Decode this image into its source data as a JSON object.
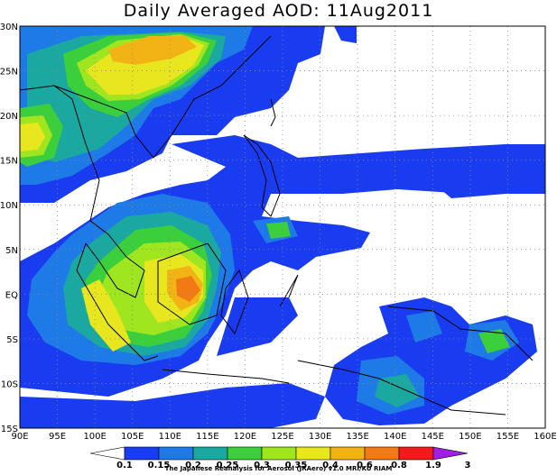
{
  "title": "Daily Averaged AOD: 11Aug2011",
  "map": {
    "lat_labels": [
      "30N",
      "25N",
      "20N",
      "15N",
      "10N",
      "5N",
      "EQ",
      "5S",
      "10S",
      "15S"
    ],
    "lon_labels": [
      "90E",
      "95E",
      "100E",
      "105E",
      "110E",
      "115E",
      "120E",
      "125E",
      "130E",
      "135E",
      "140E",
      "145E",
      "150E",
      "155E",
      "160E"
    ],
    "lon_range": [
      90,
      160
    ],
    "lat_range": [
      -15,
      30
    ],
    "grid": "dotted"
  },
  "colorbar": {
    "levels": [
      "0.1",
      "0.15",
      "0.2",
      "0.25",
      "0.3",
      "0.35",
      "0.4",
      "0.6",
      "0.8",
      "1.9",
      "3"
    ],
    "colors": [
      "#ffffff",
      "#1a3cf0",
      "#1e7ae6",
      "#1aa8a0",
      "#3ccf3c",
      "#a0e620",
      "#e8e61e",
      "#f2b414",
      "#f27a14",
      "#f21a1a",
      "#a01ee6"
    ]
  },
  "credit": "The Japanese Reanalysis for Aerosol (JRAero) v1.0 MRI/KU RIAM"
}
